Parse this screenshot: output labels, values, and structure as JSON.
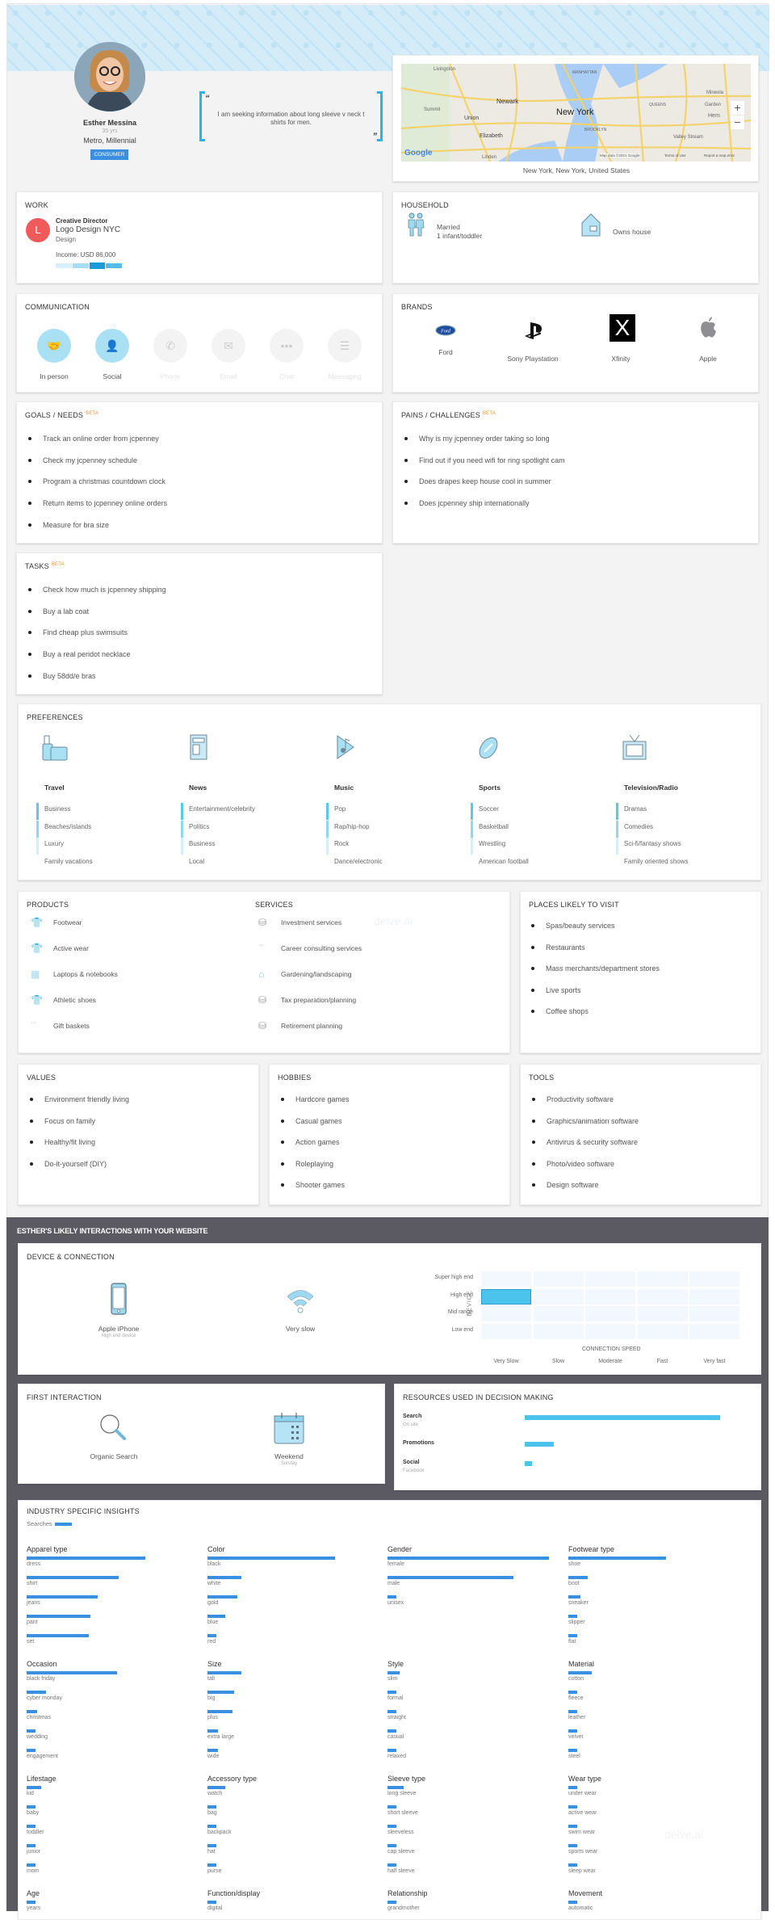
{
  "profile": {
    "name": "Esther Messina",
    "age": "35 yrs",
    "segment": "Metro, Millennial",
    "badge": "CONSUMER",
    "quote": "I am seeking information about long sleeve v neck t shirts for men.",
    "quote_open": "“",
    "quote_close": "”"
  },
  "location": {
    "caption": "New York, New York, United States",
    "map_labels": {
      "livingston": "Livingston",
      "manhattan": "MANHATTAN",
      "newark": "Newark",
      "summit": "Summit",
      "union": "Union",
      "new_york": "New York",
      "queens": "QUEENS",
      "mineola": "Mineola",
      "garden": "Garden",
      "hem": "Hem",
      "brooklyn": "BROOKLYN",
      "elizabeth": "Elizabeth",
      "valley_stream": "Valley Stream",
      "linden": "Linden"
    },
    "google": "Google",
    "attribution": "Map data ©2021 Google",
    "terms": "Terms of Use",
    "report": "Report a map error",
    "zoom_in": "+",
    "zoom_out": "−"
  },
  "work": {
    "title": "WORK",
    "initial": "L",
    "job_title": "Creative Director",
    "company": "Logo Design NYC",
    "department": "Design",
    "income": "Income: USD 86,000",
    "income_level": 3,
    "income_levels_total": 4,
    "logo_color": "#f05a5a"
  },
  "household": {
    "title": "HOUSEHOLD",
    "items": [
      {
        "icon": "family-icon",
        "line1": "Married",
        "line2": "1 infant/toddler"
      },
      {
        "icon": "house-icon",
        "line1": "Owns house",
        "line2": ""
      }
    ]
  },
  "communication": {
    "title": "COMMUNICATION",
    "channels": [
      {
        "label": "In person",
        "icon": "handshake-icon",
        "active": true
      },
      {
        "label": "Social",
        "icon": "people-icon",
        "active": true
      },
      {
        "label": "Phone",
        "icon": "phone-icon",
        "active": false
      },
      {
        "label": "Email",
        "icon": "envelope-icon",
        "active": false
      },
      {
        "label": "Chat",
        "icon": "chat-icon",
        "active": false
      },
      {
        "label": "Messaging",
        "icon": "message-icon",
        "active": false
      }
    ]
  },
  "brands": {
    "title": "BRANDS",
    "items": [
      {
        "label": "Ford",
        "icon": "ford-logo"
      },
      {
        "label": "Sony Playstation",
        "icon": "playstation-logo"
      },
      {
        "label": "Xfinity",
        "icon": "xfinity-logo"
      },
      {
        "label": "Apple",
        "icon": "apple-logo"
      }
    ]
  },
  "goals": {
    "title": "GOALS / NEEDS",
    "beta": "BETA",
    "items": [
      "Track an online order from jcpenney",
      "Check my jcpenney schedule",
      "Program a christmas countdown clock",
      "Return items to jcpenney online orders",
      "Measure for bra size"
    ]
  },
  "pains": {
    "title": "PAINS / CHALLENGES",
    "beta": "BETA",
    "items": [
      "Why is my jcpenney order taking so long",
      "Find out if you need wifi for ring spotlight cam",
      "Does drapes keep house cool in summer",
      "Does jcpenney ship internationally"
    ]
  },
  "tasks": {
    "title": "TASKS",
    "beta": "BETA",
    "items": [
      "Check how much is jcpenney shipping",
      "Buy a lab coat",
      "Find cheap plus swimsuits",
      "Buy a real peridot necklace",
      "Buy 58dd/e bras"
    ]
  },
  "preferences": {
    "title": "PREFERENCES",
    "categories": [
      {
        "name": "Travel",
        "icon": "luggage-icon",
        "items": [
          "Business",
          "Beaches/islands",
          "Luxury",
          "Family vacations"
        ]
      },
      {
        "name": "News",
        "icon": "newspaper-icon",
        "items": [
          "Entertainment/celebrity",
          "Politics",
          "Business",
          "Local"
        ]
      },
      {
        "name": "Music",
        "icon": "music-play-icon",
        "items": [
          "Pop",
          "Rap/hip-hop",
          "Rock",
          "Dance/electronic"
        ]
      },
      {
        "name": "Sports",
        "icon": "football-icon",
        "items": [
          "Soccer",
          "Basketball",
          "Wrestling",
          "American football"
        ]
      },
      {
        "name": "Television/Radio",
        "icon": "tv-icon",
        "items": [
          "Dramas",
          "Comedies",
          "Sci-fi/fantasy shows",
          "Family oriented shows"
        ]
      }
    ],
    "item_strength": [
      1,
      0.8,
      0.3,
      0
    ]
  },
  "products": {
    "title": "PRODUCTS",
    "items": [
      {
        "label": "Footwear",
        "icon": "shirt-icon"
      },
      {
        "label": "Active wear",
        "icon": "shirt-icon"
      },
      {
        "label": "Laptops & notebooks",
        "icon": "laptop-icon"
      },
      {
        "label": "Athletic shoes",
        "icon": "shirt-icon"
      },
      {
        "label": "Gift baskets",
        "icon": "ellipsis-icon"
      }
    ]
  },
  "services": {
    "title": "SERVICES",
    "items": [
      {
        "label": "Investment services",
        "icon": "coins-icon"
      },
      {
        "label": "Career consulting services",
        "icon": "ellipsis-icon"
      },
      {
        "label": "Gardening/landscaping",
        "icon": "house-icon"
      },
      {
        "label": "Tax preparation/planning",
        "icon": "coins-icon"
      },
      {
        "label": "Retirement planning",
        "icon": "coins-icon"
      }
    ]
  },
  "watermark": "delve.ai",
  "places": {
    "title": "PLACES LIKELY TO VISIT",
    "items": [
      "Spas/beauty services",
      "Restaurants",
      "Mass merchants/department stores",
      "Live sports",
      "Coffee shops"
    ]
  },
  "values": {
    "title": "VALUES",
    "items": [
      "Environment friendly living",
      "Focus on family",
      "Healthy/fit living",
      "Do-it-yourself (DIY)"
    ]
  },
  "hobbies": {
    "title": "HOBBIES",
    "items": [
      "Hardcore games",
      "Casual games",
      "Action games",
      "Roleplaying",
      "Shooter games"
    ]
  },
  "tools": {
    "title": "TOOLS",
    "items": [
      "Productivity software",
      "Graphics/animation software",
      "Antivirus & security software",
      "Photo/video software",
      "Design software"
    ]
  },
  "website": {
    "title": "ESTHER'S LIKELY INTERACTIONS WITH YOUR WEBSITE"
  },
  "device": {
    "title": "DEVICE & CONNECTION",
    "device_name": "Apple iPhone",
    "device_sub": "High end device",
    "connection": "Very slow"
  },
  "first_interaction": {
    "title": "FIRST INTERACTION",
    "items": [
      {
        "icon": "magnifier-icon",
        "label": "Organic Search",
        "sub": ""
      },
      {
        "icon": "calendar-icon",
        "label": "Weekend",
        "sub": "Sunday"
      }
    ]
  },
  "resources": {
    "title": "RESOURCES USED IN DECISION MAKING"
  },
  "accent": "#4bc3ec",
  "chart_data": [
    {
      "type": "heatmap",
      "ylabel": "DEVICE",
      "xlabel": "CONNECTION SPEED",
      "y_categories": [
        "Super high end",
        "High end",
        "Mid range",
        "Low end"
      ],
      "x_categories": [
        "Very Slow",
        "Slow",
        "Moderate",
        "Fast",
        "Very fast"
      ],
      "highlight": [
        {
          "x": "Very Slow",
          "y": "High end"
        }
      ]
    },
    {
      "type": "bar",
      "orientation": "horizontal",
      "categories": [
        {
          "label": "Search",
          "sub": "On site"
        },
        {
          "label": "Promotions",
          "sub": ""
        },
        {
          "label": "Social",
          "sub": "Facebook"
        }
      ],
      "values": [
        93,
        14,
        3.5
      ]
    },
    {
      "type": "bar",
      "orientation": "horizontal",
      "title": "INDUSTRY SPECIFIC INSIGHTS",
      "legend": "Searches",
      "groups": [
        {
          "name": "Apparel type",
          "categories": [
            "dress",
            "shirt",
            "jeans",
            "pant",
            "set"
          ],
          "values": [
            67,
            52,
            40,
            36,
            35
          ]
        },
        {
          "name": "Color",
          "categories": [
            "black",
            "white",
            "gold",
            "blue",
            "red"
          ],
          "values": [
            72,
            19,
            17,
            10,
            5
          ]
        },
        {
          "name": "Gender",
          "categories": [
            "female",
            "male",
            "unisex"
          ],
          "values": [
            91,
            71,
            5
          ]
        },
        {
          "name": "Footwear type",
          "categories": [
            "shoe",
            "boot",
            "sneaker",
            "slipper",
            "flat"
          ],
          "values": [
            55,
            11,
            7,
            5,
            5
          ]
        },
        {
          "name": "Occasion",
          "categories": [
            "black friday",
            "cyber monday",
            "christmas",
            "wedding",
            "engagement"
          ],
          "values": [
            51,
            11,
            6,
            5,
            5
          ]
        },
        {
          "name": "Size",
          "categories": [
            "tall",
            "big",
            "plus",
            "extra large",
            "wide"
          ],
          "values": [
            19,
            15,
            14,
            6,
            6
          ]
        },
        {
          "name": "Style",
          "categories": [
            "slim",
            "formal",
            "straight",
            "casual",
            "relaxed"
          ],
          "values": [
            7,
            5,
            5,
            5,
            5
          ]
        },
        {
          "name": "Material",
          "categories": [
            "cotton",
            "fleece",
            "leather",
            "velvet",
            "steel"
          ],
          "values": [
            13,
            5,
            5,
            5,
            5
          ]
        },
        {
          "name": "Lifestage",
          "categories": [
            "kid",
            "baby",
            "toddler",
            "junior",
            "mom"
          ],
          "values": [
            8,
            5,
            5,
            5,
            5
          ]
        },
        {
          "name": "Accessory type",
          "categories": [
            "watch",
            "bag",
            "backpack",
            "hat",
            "purse"
          ],
          "values": [
            10,
            5,
            5,
            5,
            5
          ]
        },
        {
          "name": "Sleeve type",
          "categories": [
            "long sleeve",
            "short sleeve",
            "sleeveless",
            "cap sleeve",
            "half sleeve"
          ],
          "values": [
            9,
            5,
            5,
            5,
            5
          ]
        },
        {
          "name": "Wear type",
          "categories": [
            "under wear",
            "active wear",
            "swim wear",
            "sports wear",
            "sleep wear"
          ],
          "values": [
            5,
            5,
            5,
            5,
            5
          ]
        },
        {
          "name": "Age",
          "categories": [
            "years"
          ],
          "values": [
            5
          ]
        },
        {
          "name": "Function/display",
          "categories": [
            "digital"
          ],
          "values": [
            5
          ]
        },
        {
          "name": "Relationship",
          "categories": [
            "grandmother"
          ],
          "values": [
            5
          ]
        },
        {
          "name": "Movement",
          "categories": [
            "automatic"
          ],
          "values": [
            5
          ]
        }
      ]
    }
  ]
}
